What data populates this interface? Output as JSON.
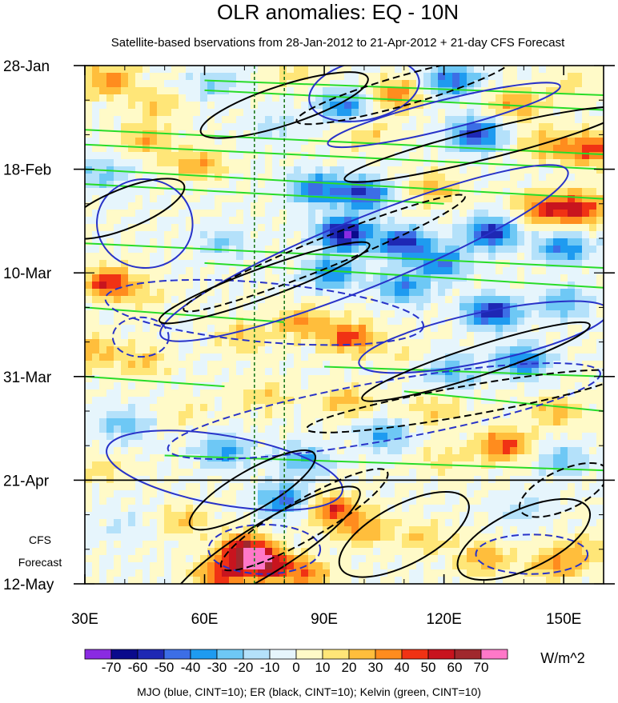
{
  "chart_data": {
    "type": "heatmap",
    "title": "OLR anomalies: EQ - 10N",
    "subtitle": "Satellite-based bservations from 28-Jan-2012 to 21-Apr-2012 + 21-day CFS Forecast",
    "xlabel": "",
    "ylabel": "",
    "x_ticks": [
      "30E",
      "60E",
      "90E",
      "120E",
      "150E"
    ],
    "x_tick_values": [
      30,
      60,
      90,
      120,
      150
    ],
    "xlim": [
      30,
      160
    ],
    "y_ticks": [
      "28-Jan",
      "18-Feb",
      "10-Mar",
      "31-Mar",
      "21-Apr",
      "12-May"
    ],
    "y_tick_days": [
      0,
      21,
      42,
      63,
      84,
      105
    ],
    "ylim_days": [
      0,
      105
    ],
    "observation_end_day": 84,
    "forecast_label_line1": "CFS",
    "forecast_label_line2": "Forecast",
    "vertical_reference_lines_lon": [
      72.5,
      80
    ],
    "colorbar": {
      "labels": [
        "-70",
        "-60",
        "-50",
        "-40",
        "-30",
        "-20",
        "-10",
        "0",
        "10",
        "20",
        "30",
        "40",
        "50",
        "60",
        "70"
      ],
      "levels": [
        -70,
        -60,
        -50,
        -40,
        -30,
        -20,
        -10,
        0,
        10,
        20,
        30,
        40,
        50,
        60,
        70
      ],
      "colors": [
        "#8a2be2",
        "#0a0a8c",
        "#1e28b4",
        "#3c6ee6",
        "#1e9bf0",
        "#6ec8f5",
        "#b4e1fa",
        "#e6f5fc",
        "#fffac8",
        "#ffe678",
        "#ffbe3c",
        "#ff8c1e",
        "#f03214",
        "#c8141e",
        "#a0282d",
        "#ff78c8"
      ],
      "units": "W/m^2"
    },
    "footer": "MJO (blue, CINT=10); ER (black, CINT=10); Kelvin (green, CINT=10)",
    "contour_series": [
      {
        "name": "MJO",
        "color": "#2832c8",
        "cint": 10
      },
      {
        "name": "ER",
        "color": "#000000",
        "cint": 10
      },
      {
        "name": "Kelvin",
        "color": "#28dc28",
        "cint": 10
      }
    ],
    "anomaly_features": [
      {
        "lon": 36,
        "day": 3,
        "value": 35
      },
      {
        "lon": 48,
        "day": 8,
        "value": 20
      },
      {
        "lon": 62,
        "day": 4,
        "value": -20
      },
      {
        "lon": 82,
        "day": 2,
        "value": 15
      },
      {
        "lon": 95,
        "day": 8,
        "value": -40
      },
      {
        "lon": 108,
        "day": 6,
        "value": 35
      },
      {
        "lon": 122,
        "day": 3,
        "value": -45
      },
      {
        "lon": 138,
        "day": 8,
        "value": 30
      },
      {
        "lon": 152,
        "day": 4,
        "value": 15
      },
      {
        "lon": 128,
        "day": 14,
        "value": -55
      },
      {
        "lon": 146,
        "day": 16,
        "value": 25
      },
      {
        "lon": 157,
        "day": 17,
        "value": 45
      },
      {
        "lon": 100,
        "day": 14,
        "value": 20
      },
      {
        "lon": 78,
        "day": 12,
        "value": -15
      },
      {
        "lon": 45,
        "day": 15,
        "value": 25
      },
      {
        "lon": 58,
        "day": 20,
        "value": 30
      },
      {
        "lon": 35,
        "day": 22,
        "value": -25
      },
      {
        "lon": 88,
        "day": 25,
        "value": -45
      },
      {
        "lon": 100,
        "day": 26,
        "value": -55
      },
      {
        "lon": 118,
        "day": 25,
        "value": 25
      },
      {
        "lon": 145,
        "day": 29,
        "value": 40
      },
      {
        "lon": 154,
        "day": 29,
        "value": 50
      },
      {
        "lon": 95,
        "day": 34,
        "value": -70
      },
      {
        "lon": 110,
        "day": 36,
        "value": -55
      },
      {
        "lon": 132,
        "day": 34,
        "value": -55
      },
      {
        "lon": 150,
        "day": 37,
        "value": -40
      },
      {
        "lon": 120,
        "day": 40,
        "value": -40
      },
      {
        "lon": 65,
        "day": 36,
        "value": -20
      },
      {
        "lon": 36,
        "day": 44,
        "value": 50
      },
      {
        "lon": 45,
        "day": 47,
        "value": 10
      },
      {
        "lon": 92,
        "day": 42,
        "value": -40
      },
      {
        "lon": 110,
        "day": 45,
        "value": -40
      },
      {
        "lon": 132,
        "day": 50,
        "value": -60
      },
      {
        "lon": 150,
        "day": 48,
        "value": -30
      },
      {
        "lon": 84,
        "day": 52,
        "value": 30
      },
      {
        "lon": 96,
        "day": 55,
        "value": 45
      },
      {
        "lon": 70,
        "day": 55,
        "value": 20
      },
      {
        "lon": 108,
        "day": 58,
        "value": 10
      },
      {
        "lon": 140,
        "day": 60,
        "value": -45
      },
      {
        "lon": 122,
        "day": 62,
        "value": -30
      },
      {
        "lon": 45,
        "day": 60,
        "value": 20
      },
      {
        "lon": 33,
        "day": 58,
        "value": 25
      },
      {
        "lon": 55,
        "day": 70,
        "value": 10
      },
      {
        "lon": 75,
        "day": 67,
        "value": 20
      },
      {
        "lon": 95,
        "day": 68,
        "value": 25
      },
      {
        "lon": 118,
        "day": 70,
        "value": 20
      },
      {
        "lon": 148,
        "day": 70,
        "value": 25
      },
      {
        "lon": 40,
        "day": 73,
        "value": -25
      },
      {
        "lon": 105,
        "day": 75,
        "value": -30
      },
      {
        "lon": 135,
        "day": 77,
        "value": 45
      },
      {
        "lon": 65,
        "day": 78,
        "value": -35
      },
      {
        "lon": 85,
        "day": 80,
        "value": -30
      },
      {
        "lon": 150,
        "day": 80,
        "value": -25
      },
      {
        "lon": 120,
        "day": 80,
        "value": 15
      },
      {
        "lon": 35,
        "day": 82,
        "value": 15
      },
      {
        "lon": 80,
        "day": 88,
        "value": -45
      },
      {
        "lon": 92,
        "day": 90,
        "value": 45
      },
      {
        "lon": 100,
        "day": 94,
        "value": 30
      },
      {
        "lon": 55,
        "day": 92,
        "value": 20
      },
      {
        "lon": 40,
        "day": 93,
        "value": -10
      },
      {
        "lon": 70,
        "day": 98,
        "value": 55
      },
      {
        "lon": 75,
        "day": 101,
        "value": 60
      },
      {
        "lon": 64,
        "day": 103,
        "value": 45
      },
      {
        "lon": 85,
        "day": 103,
        "value": 35
      },
      {
        "lon": 115,
        "day": 96,
        "value": 20
      },
      {
        "lon": 130,
        "day": 100,
        "value": 30
      },
      {
        "lon": 148,
        "day": 101,
        "value": 30
      },
      {
        "lon": 155,
        "day": 98,
        "value": 20
      },
      {
        "lon": 140,
        "day": 90,
        "value": -15
      }
    ],
    "mjo_contours": [
      {
        "lon": 100,
        "day": 5,
        "dlon": 14,
        "dday": 6,
        "tilt": 12,
        "dash": false
      },
      {
        "lon": 120,
        "day": 10,
        "dlon": 30,
        "dday": 3,
        "tilt": 14,
        "dash": false
      },
      {
        "lon": 45,
        "day": 32,
        "dlon": 12,
        "dday": 9,
        "tilt": -5,
        "dash": false
      },
      {
        "lon": 100,
        "day": 38,
        "dlon": 55,
        "dday": 7,
        "tilt": 22,
        "dash": false
      },
      {
        "lon": 130,
        "day": 55,
        "dlon": 32,
        "dday": 5,
        "tilt": 12,
        "dash": false
      },
      {
        "lon": 75,
        "day": 50,
        "dlon": 40,
        "dday": 6,
        "tilt": -5,
        "dash": true
      },
      {
        "lon": 44,
        "day": 55,
        "dlon": 7,
        "dday": 4,
        "tilt": 0,
        "dash": true
      },
      {
        "lon": 105,
        "day": 70,
        "dlon": 55,
        "dday": 6,
        "tilt": 10,
        "dash": true
      },
      {
        "lon": 65,
        "day": 82,
        "dlon": 30,
        "dday": 7,
        "tilt": -10,
        "dash": false
      },
      {
        "lon": 75,
        "day": 98,
        "dlon": 14,
        "dday": 5,
        "tilt": 0,
        "dash": true
      },
      {
        "lon": 142,
        "day": 99,
        "dlon": 14,
        "dday": 4,
        "tilt": 0,
        "dash": true
      }
    ],
    "er_contours": [
      {
        "lon": 80,
        "day": 8,
        "dlon": 22,
        "dday": 4,
        "tilt": 18,
        "dash": false
      },
      {
        "lon": 110,
        "day": 5,
        "dlon": 28,
        "dday": 3,
        "tilt": 16,
        "dash": true
      },
      {
        "lon": 130,
        "day": 16,
        "dlon": 36,
        "dday": 3,
        "tilt": 14,
        "dash": false
      },
      {
        "lon": 40,
        "day": 29,
        "dlon": 16,
        "dday": 4,
        "tilt": 22,
        "dash": false
      },
      {
        "lon": 90,
        "day": 38,
        "dlon": 38,
        "dday": 3,
        "tilt": 22,
        "dash": true
      },
      {
        "lon": 75,
        "day": 44,
        "dlon": 28,
        "dday": 3,
        "tilt": 20,
        "dash": false
      },
      {
        "lon": 128,
        "day": 60,
        "dlon": 30,
        "dday": 3,
        "tilt": 18,
        "dash": false
      },
      {
        "lon": 125,
        "day": 68,
        "dlon": 40,
        "dday": 3,
        "tilt": 10,
        "dash": true
      },
      {
        "lon": 72,
        "day": 86,
        "dlon": 18,
        "dday": 4,
        "tilt": 30,
        "dash": false
      },
      {
        "lon": 85,
        "day": 92,
        "dlon": 24,
        "dday": 4,
        "tilt": 30,
        "dash": true
      },
      {
        "lon": 75,
        "day": 98,
        "dlon": 28,
        "dday": 5,
        "tilt": 32,
        "dash": false
      },
      {
        "lon": 110,
        "day": 95,
        "dlon": 18,
        "dday": 6,
        "tilt": 28,
        "dash": false
      },
      {
        "lon": 140,
        "day": 96,
        "dlon": 18,
        "dday": 6,
        "tilt": 25,
        "dash": false
      },
      {
        "lon": 150,
        "day": 86,
        "dlon": 12,
        "dday": 4,
        "tilt": 25,
        "dash": true
      }
    ],
    "kelvin_lines": [
      {
        "lon0": 30,
        "day0": 13,
        "lon1": 160,
        "day1": 18
      },
      {
        "lon0": 30,
        "day0": 16,
        "lon1": 160,
        "day1": 21
      },
      {
        "lon0": 30,
        "day0": 21,
        "lon1": 160,
        "day1": 27
      },
      {
        "lon0": 30,
        "day0": 24,
        "lon1": 120,
        "day1": 28
      },
      {
        "lon0": 60,
        "day0": 3,
        "lon1": 160,
        "day1": 6
      },
      {
        "lon0": 60,
        "day0": 5,
        "lon1": 160,
        "day1": 9
      },
      {
        "lon0": 30,
        "day0": 36,
        "lon1": 160,
        "day1": 41
      },
      {
        "lon0": 60,
        "day0": 40,
        "lon1": 160,
        "day1": 45
      },
      {
        "lon0": 30,
        "day0": 63,
        "lon1": 65,
        "day1": 65
      },
      {
        "lon0": 90,
        "day0": 61,
        "lon1": 160,
        "day1": 63
      },
      {
        "lon0": 110,
        "day0": 66,
        "lon1": 160,
        "day1": 70
      },
      {
        "lon0": 50,
        "day0": 79,
        "lon1": 160,
        "day1": 82
      },
      {
        "lon0": 30,
        "day0": 49,
        "lon1": 80,
        "day1": 52
      }
    ]
  }
}
